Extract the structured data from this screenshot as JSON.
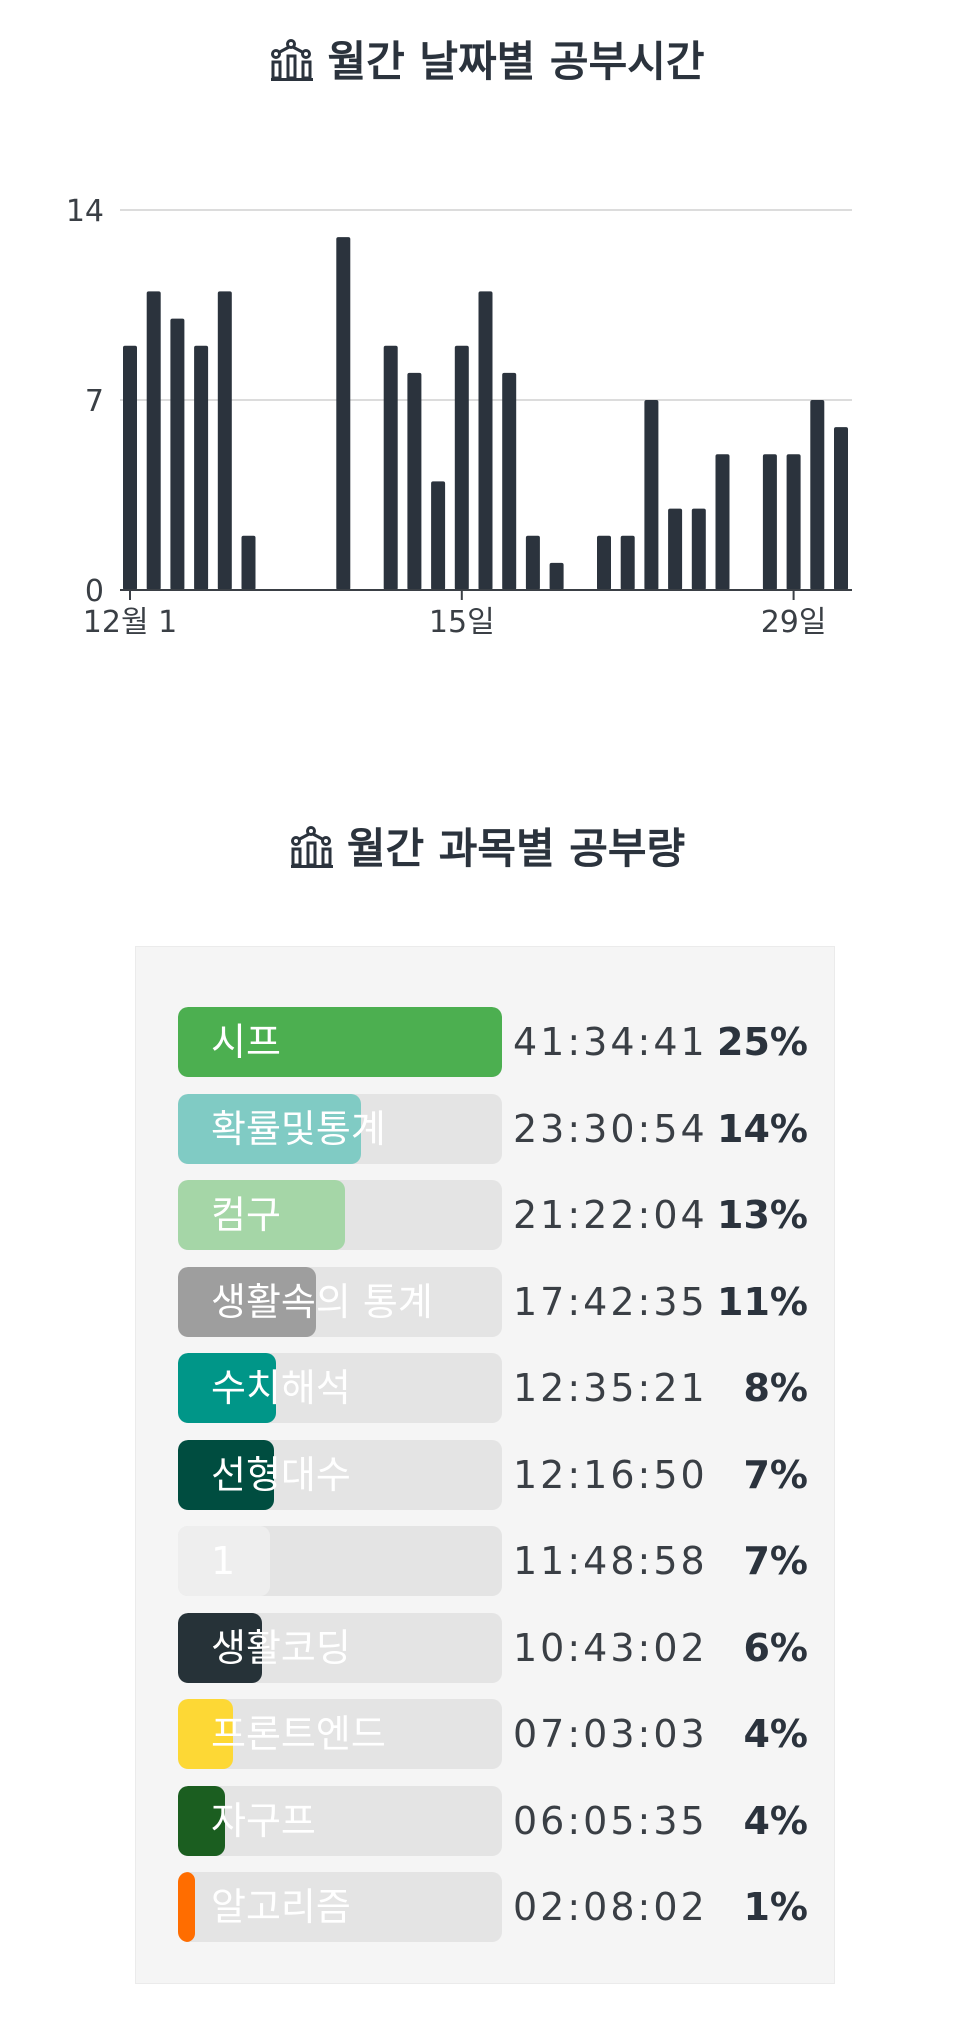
{
  "daily_section": {
    "title": "월간 날짜별 공부시간",
    "icon": "chart-icon"
  },
  "subject_section": {
    "title": "월간 과목별 공부량",
    "icon": "chart-icon"
  },
  "chart_data": [
    {
      "type": "bar",
      "title": "월간 날짜별 공부시간",
      "x": [
        1,
        2,
        3,
        4,
        5,
        6,
        7,
        8,
        9,
        10,
        11,
        12,
        13,
        14,
        15,
        16,
        17,
        18,
        19,
        20,
        21,
        22,
        23,
        24,
        25,
        26,
        27,
        28,
        29,
        30,
        31
      ],
      "values": [
        9,
        11,
        10,
        9,
        11,
        2,
        0,
        0,
        0,
        13,
        0,
        9,
        8,
        4,
        9,
        11,
        8,
        2,
        1,
        0,
        2,
        2,
        7,
        3,
        3,
        5,
        0,
        5,
        5,
        7,
        6
      ],
      "ylim": [
        0,
        14
      ],
      "yticks": [
        "0",
        "7",
        "14"
      ],
      "xticks": [
        {
          "x": 1,
          "label": "12월 1"
        },
        {
          "x": 15,
          "label": "15일"
        },
        {
          "x": 29,
          "label": "29일"
        }
      ],
      "grid": true,
      "color": "#2b333d"
    },
    {
      "type": "bar",
      "title": "월간 과목별 공부량",
      "rows": [
        {
          "label": "시프",
          "time": "41:34:41",
          "percent_label": "25%",
          "fraction": 1.0,
          "color": "#4caf50"
        },
        {
          "label": "확률및통계",
          "time": "23:30:54",
          "percent_label": "14%",
          "fraction": 0.565,
          "color": "#80cbc4"
        },
        {
          "label": "컴구",
          "time": "21:22:04",
          "percent_label": "13%",
          "fraction": 0.514,
          "color": "#a5d6a7"
        },
        {
          "label": "생활속의 통계",
          "time": "17:42:35",
          "percent_label": "11%",
          "fraction": 0.426,
          "color": "#9e9e9e"
        },
        {
          "label": "수치해석",
          "time": "12:35:21",
          "percent_label": "8%",
          "fraction": 0.303,
          "color": "#009688"
        },
        {
          "label": "선형대수",
          "time": "12:16:50",
          "percent_label": "7%",
          "fraction": 0.295,
          "color": "#004d40"
        },
        {
          "label": "1",
          "time": "11:48:58",
          "percent_label": "7%",
          "fraction": 0.284,
          "color": "#eeeeee"
        },
        {
          "label": "생활코딩",
          "time": "10:43:02",
          "percent_label": "6%",
          "fraction": 0.258,
          "color": "#263238"
        },
        {
          "label": "프론트엔드",
          "time": "07:03:03",
          "percent_label": "4%",
          "fraction": 0.17,
          "color": "#fdd835"
        },
        {
          "label": "자구프",
          "time": "06:05:35",
          "percent_label": "4%",
          "fraction": 0.146,
          "color": "#1b5e20"
        },
        {
          "label": "알고리즘",
          "time": "02:08:02",
          "percent_label": "1%",
          "fraction": 0.051,
          "color": "#ff6d00"
        }
      ]
    }
  ]
}
